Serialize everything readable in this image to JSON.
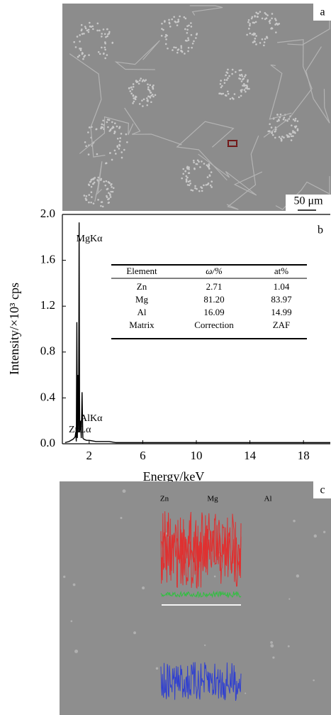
{
  "panel_a": {
    "label": "a",
    "scale_bar": "50 μm"
  },
  "chart_data": {
    "type": "line",
    "panel_label": "b",
    "x_label": "Energy/keV",
    "y_label": "Intensity/×10³ cps",
    "x": [
      0.2,
      0.5,
      0.8,
      0.95,
      1.0,
      1.04,
      1.08,
      1.12,
      1.17,
      1.21,
      1.25,
      1.29,
      1.35,
      1.41,
      1.47,
      1.53,
      1.6,
      1.8,
      2.0,
      2.5,
      3.0,
      3.5,
      4.0,
      5.0,
      6.0,
      7.0,
      8.0,
      9.0,
      10.0,
      12.0,
      14.0,
      16.0,
      18.0,
      20.0
    ],
    "values": [
      0.01,
      0.02,
      0.04,
      0.06,
      0.1,
      0.02,
      1.06,
      0.05,
      0.6,
      0.1,
      1.93,
      0.1,
      0.2,
      0.05,
      0.45,
      0.05,
      0.04,
      0.03,
      0.03,
      0.02,
      0.02,
      0.02,
      0.01,
      0.01,
      0.01,
      0.01,
      0.01,
      0.01,
      0.01,
      0.01,
      0.01,
      0.01,
      0.01,
      0.01
    ],
    "color": "#000000",
    "xlim": [
      0,
      20
    ],
    "ylim": [
      0,
      2
    ],
    "xticks": [
      2,
      6,
      10,
      14,
      18
    ],
    "yticks": [
      {
        "value": 0,
        "label": "0.0"
      },
      0.4,
      0.8,
      1.2,
      1.6,
      {
        "value": 2,
        "label": "2.0"
      }
    ],
    "annotations": [
      "MgKα",
      "AlKα",
      "ZnLα"
    ],
    "table": {
      "columns": [
        "Element",
        "ω/%",
        "at%"
      ],
      "rows": [
        [
          "Zn",
          "2.71",
          "1.04"
        ],
        [
          "Mg",
          "81.20",
          "83.97"
        ],
        [
          "Al",
          "16.09",
          "14.99"
        ],
        [
          "Matrix",
          "Correction",
          "ZAF"
        ]
      ]
    }
  },
  "panel_c": {
    "label": "c",
    "elements": [
      "Zn",
      "Mg",
      "Al"
    ]
  }
}
